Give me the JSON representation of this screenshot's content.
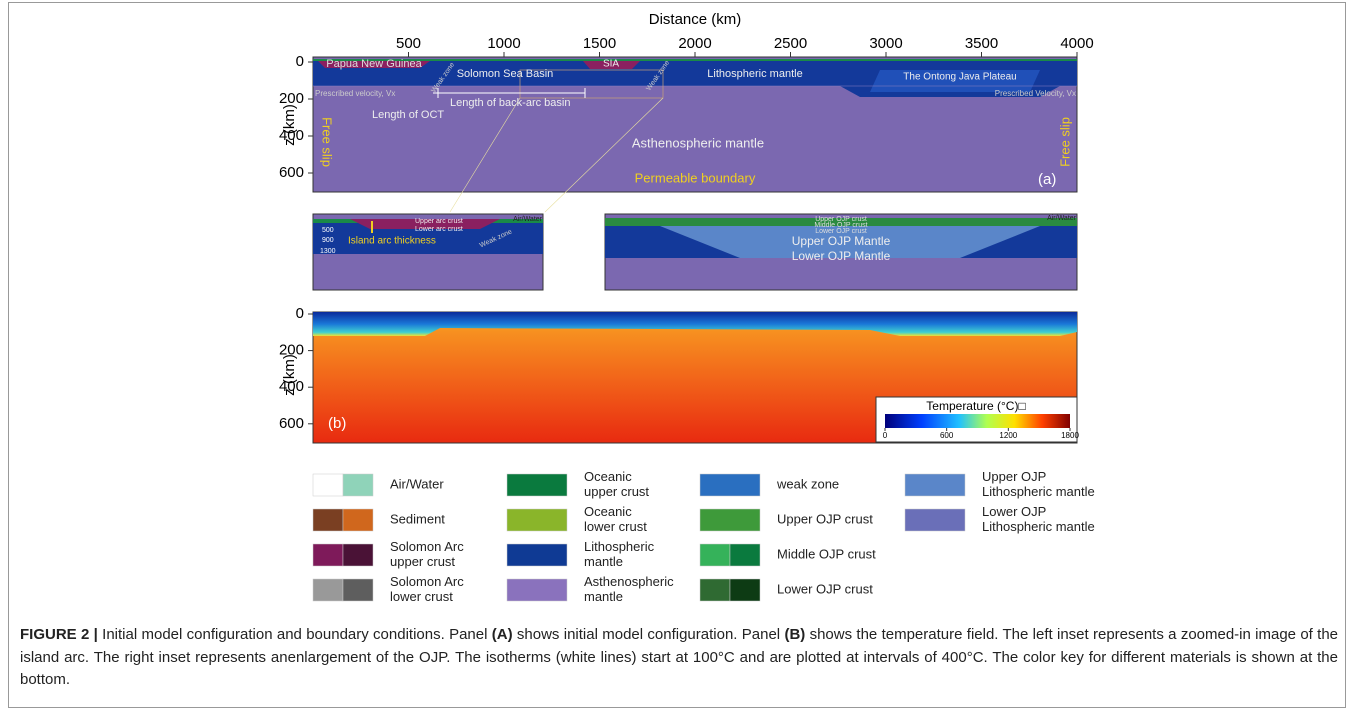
{
  "panel_a": {
    "x_label": "Distance (km)",
    "xticks": [
      500,
      1000,
      1500,
      2000,
      2500,
      3000,
      3500,
      4000
    ],
    "y_label": "z (km)",
    "yticks": [
      0,
      200,
      400,
      600
    ],
    "labels": {
      "png": "Papua New Guinea",
      "ssb": "Solomon Sea Basin",
      "sia": "SIA",
      "lith": "Lithospheric mantle",
      "ojp": "The Ontong Java Plateau",
      "vel_left": "Prescribed velocity, Vx",
      "vel_right": "Prescribed Velocity, Vx",
      "weak1": "Weak zone",
      "weak2": "Weak zone",
      "oct": "Length of OCT",
      "bab": "Length of back-arc basin",
      "asth": "Asthenospheric mantle",
      "perm": "Permeable boundary",
      "slip_left": "Free slip",
      "slip_right": "Free slip"
    },
    "panel_tag": "(a)"
  },
  "inset_left": {
    "upper": "Upper arc crust",
    "lower": "Lower arc crust",
    "air": "Air/Water",
    "isotherms": [
      500,
      900,
      1300
    ],
    "thickness": "Island arc thickness",
    "weak": "Weak zone"
  },
  "inset_right": {
    "upper": "Upper OJP crust",
    "middle": "Middle OJP crust",
    "lower": "Lower OJP crust",
    "air": "Air/Water",
    "upper_mantle": "Upper OJP Mantle",
    "lower_mantle": "Lower OJP Mantle"
  },
  "panel_b": {
    "y_label": "z (km)",
    "yticks": [
      0,
      200,
      400,
      600
    ],
    "panel_tag": "(b)",
    "colorbar": {
      "title": "Temperature (°C)□",
      "ticks": [
        0,
        600,
        1200,
        1800
      ]
    }
  },
  "legend": [
    {
      "lines": [
        "Air/Water"
      ],
      "colors": [
        "#ffffff",
        "#8fd3b9"
      ]
    },
    {
      "lines": [
        "Sediment"
      ],
      "colors": [
        "#7a3f22",
        "#d0671d"
      ]
    },
    {
      "lines": [
        "Solomon Arc",
        "upper crust"
      ],
      "colors": [
        "#7e1a5a",
        "#4a1236"
      ]
    },
    {
      "lines": [
        "Solomon Arc",
        "lower crust"
      ],
      "colors": [
        "#999999",
        "#5e5e5e"
      ]
    },
    {
      "lines": [
        "Oceanic",
        "upper crust"
      ],
      "colors": [
        "#0a7a3e"
      ]
    },
    {
      "lines": [
        "Oceanic",
        "lower crust"
      ],
      "colors": [
        "#8ab52a"
      ]
    },
    {
      "lines": [
        "Lithospheric",
        "mantle"
      ],
      "colors": [
        "#0f3a94"
      ]
    },
    {
      "lines": [
        "Asthenospheric",
        "mantle"
      ],
      "colors": [
        "#8a72bd"
      ]
    },
    {
      "lines": [
        "weak zone"
      ],
      "colors": [
        "#2a6fc0"
      ]
    },
    {
      "lines": [
        "Upper OJP crust"
      ],
      "colors": [
        "#3e9a3a"
      ]
    },
    {
      "lines": [
        "Middle OJP crust"
      ],
      "colors": [
        "#35b25a",
        "#0a7a3e"
      ]
    },
    {
      "lines": [
        "Lower OJP crust"
      ],
      "colors": [
        "#2f6a32",
        "#0d3b14"
      ]
    },
    {
      "lines": [
        "Upper OJP",
        "Lithospheric mantle"
      ],
      "colors": [
        "#5a86c9"
      ]
    },
    {
      "lines": [
        "Lower OJP",
        "Lithospheric mantle"
      ],
      "colors": [
        "#6a6fb8"
      ]
    }
  ],
  "caption": [
    {
      "text": "FIGURE 2 |",
      "bold": true
    },
    {
      "text": " Initial model configuration and boundary conditions. Panel ",
      "bold": false
    },
    {
      "text": "(A)",
      "bold": true
    },
    {
      "text": " shows initial model configuration. Panel ",
      "bold": false
    },
    {
      "text": "(B)",
      "bold": true
    },
    {
      "text": " shows the temperature field. The left inset represents a zoomed-in image of the island arc. The right inset represents anenlargement of the OJP. The isotherms (white lines) start at 100°C and are plotted at intervals of 400°C. The color key for different materials is shown at the bottom.",
      "bold": false
    }
  ]
}
